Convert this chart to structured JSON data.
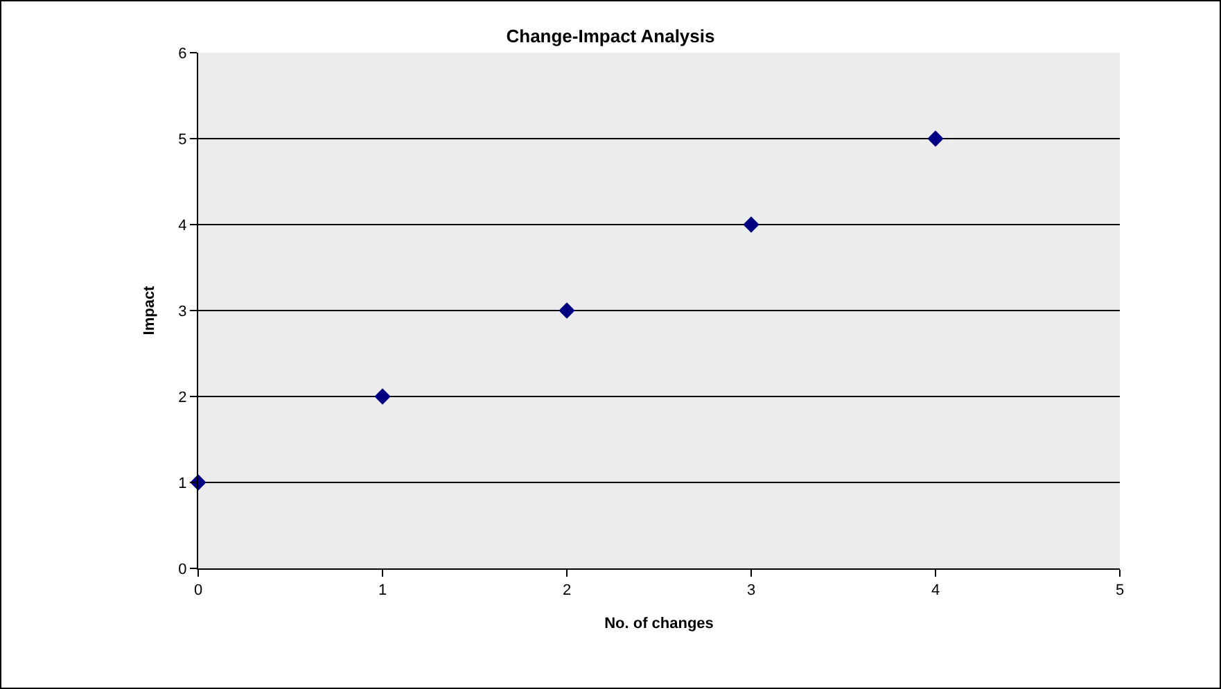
{
  "chart_data": {
    "type": "scatter",
    "title": "Change-Impact Analysis",
    "xlabel": "No. of changes",
    "ylabel": "Impact",
    "x": [
      0,
      1,
      2,
      3,
      4
    ],
    "series": [
      {
        "color": "#000080",
        "values": [
          1,
          2,
          3,
          4,
          5
        ]
      }
    ],
    "xlim": [
      0,
      5
    ],
    "xticks": [
      0,
      1,
      2,
      3,
      4,
      5
    ],
    "ylim": [
      0,
      6
    ],
    "yticks": [
      0,
      1,
      2,
      3,
      4,
      5,
      6
    ],
    "grid": "y",
    "marker": "diamond"
  }
}
